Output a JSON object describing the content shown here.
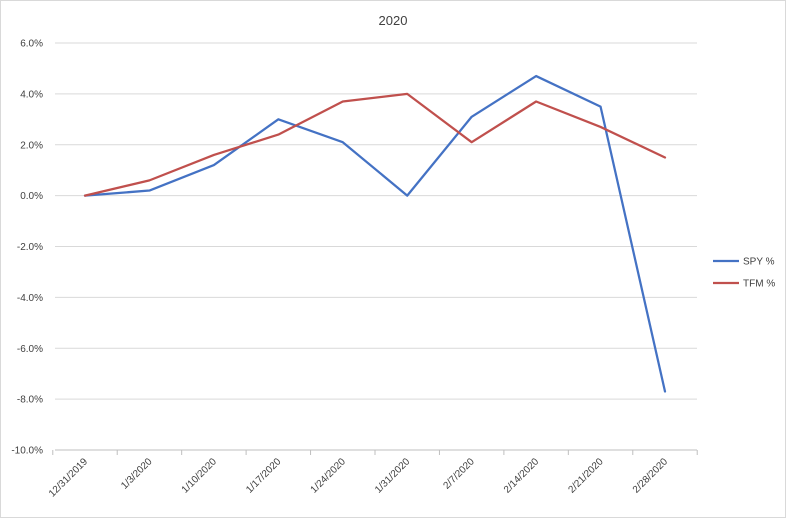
{
  "chart_data": {
    "type": "line",
    "title": "2020",
    "xlabel": "",
    "ylabel": "",
    "categories": [
      "12/31/2019",
      "1/3/2020",
      "1/10/2020",
      "1/17/2020",
      "1/24/2020",
      "1/31/2020",
      "2/7/2020",
      "2/14/2020",
      "2/21/2020",
      "2/28/2020"
    ],
    "ylim": [
      -10.0,
      6.0
    ],
    "ytick_step": 2.0,
    "ytick_labels": [
      "6.0%",
      "4.0%",
      "2.0%",
      "0.0%",
      "-2.0%",
      "-4.0%",
      "-6.0%",
      "-8.0%",
      "-10.0%"
    ],
    "grid": true,
    "legend_position": "right",
    "series": [
      {
        "name": "SPY %",
        "color": "#4472c4",
        "values": [
          0.0,
          0.2,
          1.2,
          3.0,
          2.1,
          0.0,
          3.1,
          4.7,
          3.5,
          -7.7
        ]
      },
      {
        "name": "TFM %",
        "color": "#c0504d",
        "values": [
          0.0,
          0.6,
          1.6,
          2.4,
          3.7,
          4.0,
          2.1,
          3.7,
          2.7,
          1.5
        ]
      }
    ]
  }
}
